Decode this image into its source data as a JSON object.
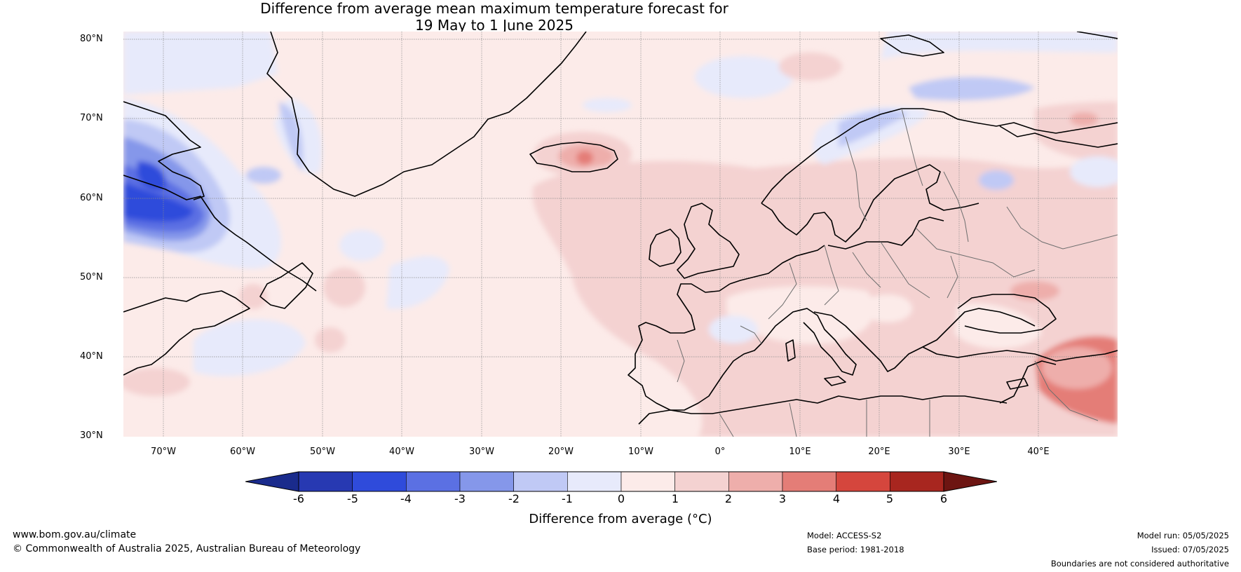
{
  "title": {
    "line1": "Difference from average mean maximum temperature forecast for",
    "line2": "19 May to 1 June 2025"
  },
  "map": {
    "region": "North Atlantic and Europe",
    "lat_labels": [
      "80°N",
      "70°N",
      "60°N",
      "50°N",
      "40°N",
      "30°N"
    ],
    "lon_labels": [
      "70°W",
      "60°W",
      "50°W",
      "40°W",
      "30°W",
      "20°W",
      "10°W",
      "0°",
      "10°E",
      "20°E",
      "30°E",
      "40°E"
    ],
    "extent": {
      "lon_min": -75,
      "lon_max": 50,
      "lat_min": 30,
      "lat_max": 81
    }
  },
  "colorbar": {
    "ticks": [
      "-6",
      "-5",
      "-4",
      "-3",
      "-2",
      "-1",
      "0",
      "1",
      "2",
      "3",
      "4",
      "5",
      "6"
    ],
    "colors": [
      "#1a2b8c",
      "#2739b2",
      "#2f4bdb",
      "#5b70e3",
      "#8597ea",
      "#c0c9f5",
      "#e7eafb",
      "#fcebe9",
      "#f4d2d1",
      "#eeaeab",
      "#e47d77",
      "#d5463d",
      "#a8261f",
      "#6d1512"
    ],
    "label": "Difference from average (°C)"
  },
  "footer": {
    "website": "www.bom.gov.au/climate",
    "copyright": "© Commonwealth of Australia 2025, Australian Bureau of Meteorology",
    "model": "Model: ACCESS-S2",
    "base_period": "Base period: 1981-2018",
    "model_run": "Model run: 05/05/2025",
    "issued": "Issued: 07/05/2025",
    "disclaimer": "Boundaries are not considered authoritative"
  }
}
